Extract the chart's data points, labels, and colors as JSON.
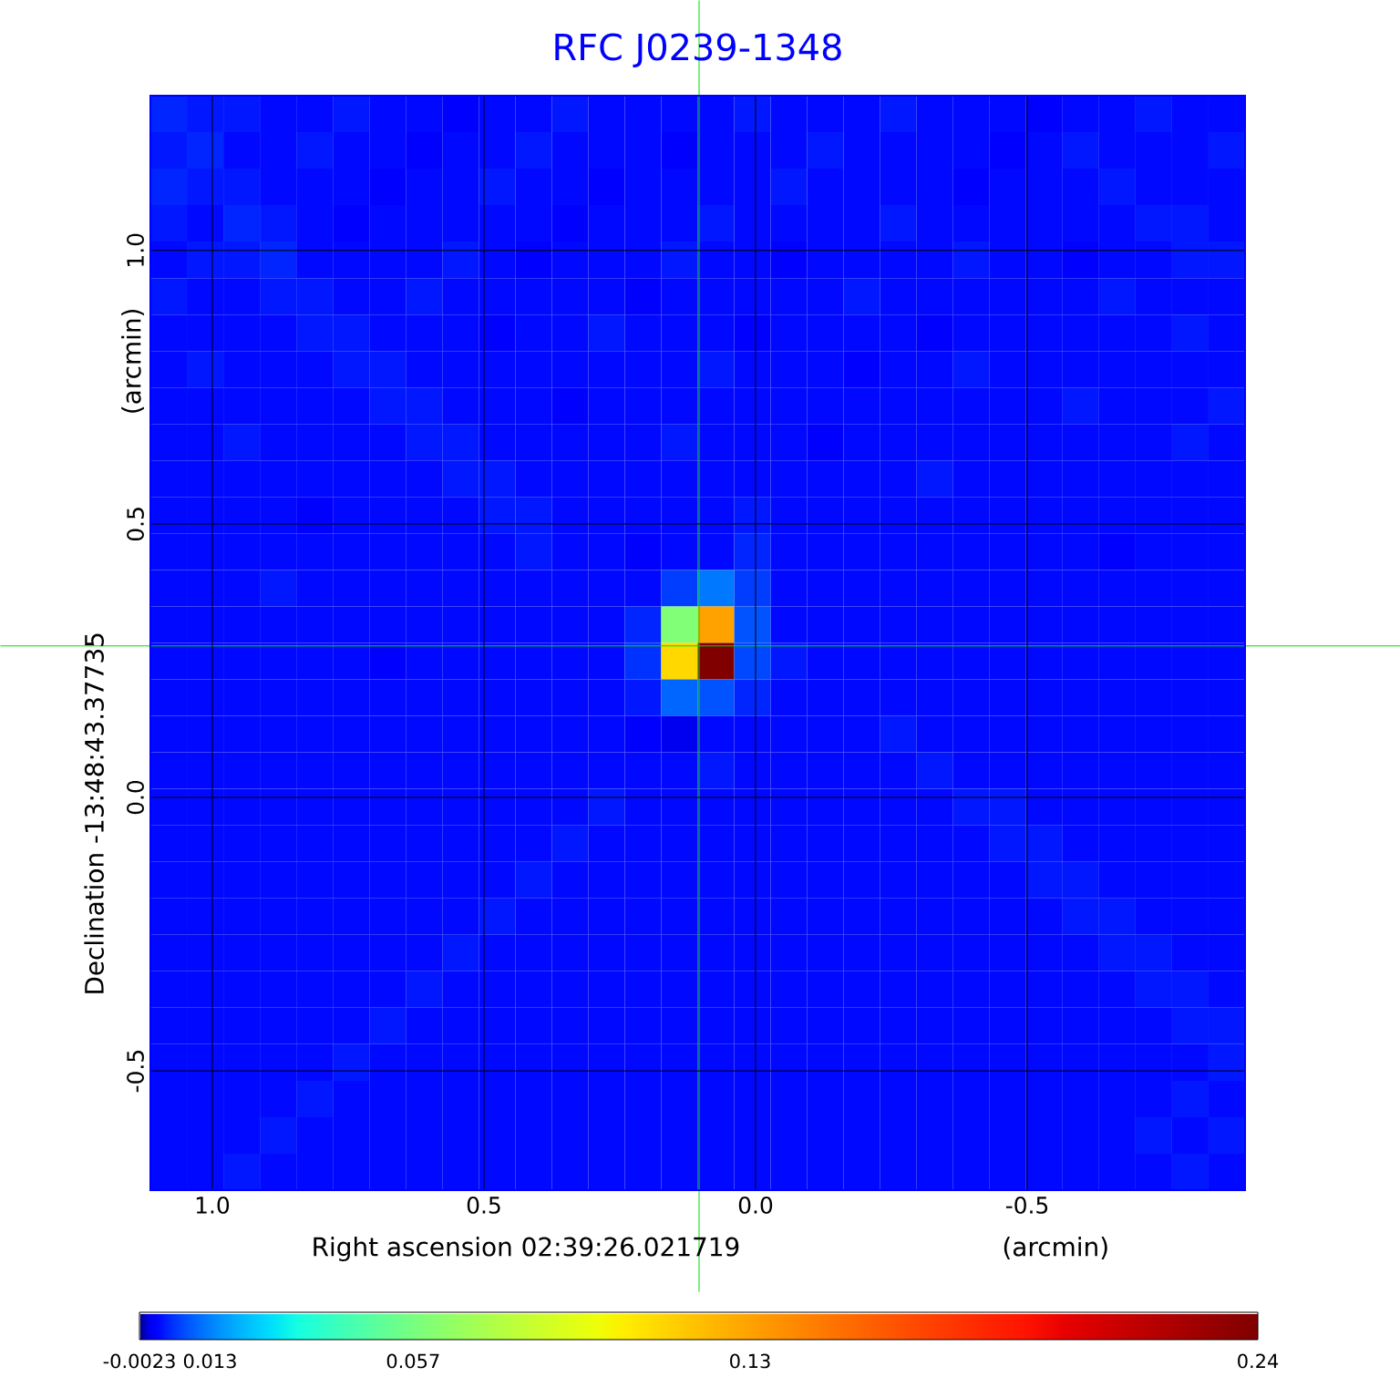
{
  "chart_data": {
    "type": "heatmap",
    "title": "RFC J0239-1348",
    "xlabel": "Right ascension  02:39:26.021719",
    "ylabel": "Declination  -13:48:43.37735",
    "annotations": [
      "(arcmin)",
      "(arcmin)"
    ],
    "xlim": [
      1.114,
      -0.901
    ],
    "ylim": [
      -0.718,
      1.283
    ],
    "xticks": [
      {
        "value": 1.0,
        "label": "1.0"
      },
      {
        "value": 0.5,
        "label": "0.5"
      },
      {
        "value": 0.0,
        "label": "0.0"
      },
      {
        "value": -0.5,
        "label": "-0.5"
      }
    ],
    "yticks": [
      {
        "value": -0.5,
        "label": "-0.5"
      },
      {
        "value": 0.0,
        "label": "0.0"
      },
      {
        "value": 0.5,
        "label": "0.5"
      },
      {
        "value": 1.0,
        "label": "1.0"
      }
    ],
    "grid": true,
    "ref_lines": [
      {
        "axis": "x",
        "value": 0.104,
        "color": "#00dd00"
      },
      {
        "axis": "y",
        "value": 0.277,
        "color": "#00dd00"
      }
    ],
    "clim": [
      -0.0023,
      0.24
    ],
    "cticks": [
      -0.0023,
      0.013,
      0.057,
      0.13,
      0.24
    ],
    "cells": [
      [
        0.004,
        0.003,
        0.003,
        0.002,
        0.002,
        0.003,
        0.002,
        0.002,
        0.001,
        0.002,
        0.002,
        0.003,
        0.002,
        0.002,
        0.002,
        0.002,
        0.003,
        0.002,
        0.002,
        0.002,
        0.003,
        0.002,
        0.002,
        0.002,
        0.001,
        0.002,
        0.002,
        0.003,
        0.002,
        0.002
      ],
      [
        0.003,
        0.004,
        0.002,
        0.002,
        0.003,
        0.002,
        0.002,
        0.001,
        0.002,
        0.002,
        0.003,
        0.002,
        0.002,
        0.002,
        0.001,
        0.002,
        0.002,
        0.002,
        0.003,
        0.002,
        0.002,
        0.002,
        0.002,
        0.001,
        0.002,
        0.003,
        0.002,
        0.002,
        0.002,
        0.003
      ],
      [
        0.004,
        0.003,
        0.003,
        0.002,
        0.002,
        0.002,
        0.001,
        0.002,
        0.002,
        0.003,
        0.002,
        0.002,
        0.001,
        0.002,
        0.002,
        0.002,
        0.002,
        0.003,
        0.002,
        0.002,
        0.002,
        0.002,
        0.001,
        0.002,
        0.002,
        0.002,
        0.003,
        0.002,
        0.002,
        0.002
      ],
      [
        0.003,
        0.002,
        0.004,
        0.003,
        0.002,
        0.001,
        0.002,
        0.002,
        0.002,
        0.002,
        0.002,
        0.001,
        0.002,
        0.002,
        0.002,
        0.003,
        0.002,
        0.002,
        0.002,
        0.002,
        0.003,
        0.002,
        0.002,
        0.002,
        0.002,
        0.002,
        0.002,
        0.003,
        0.003,
        0.002
      ],
      [
        0.002,
        0.003,
        0.003,
        0.004,
        0.002,
        0.002,
        0.002,
        0.002,
        0.003,
        0.002,
        0.001,
        0.002,
        0.002,
        0.002,
        0.003,
        0.002,
        0.002,
        0.001,
        0.002,
        0.002,
        0.002,
        0.002,
        0.003,
        0.002,
        0.002,
        0.001,
        0.002,
        0.002,
        0.003,
        0.003
      ],
      [
        0.003,
        0.002,
        0.002,
        0.003,
        0.003,
        0.002,
        0.002,
        0.003,
        0.002,
        0.002,
        0.002,
        0.002,
        0.002,
        0.001,
        0.002,
        0.002,
        0.002,
        0.002,
        0.002,
        0.003,
        0.002,
        0.002,
        0.002,
        0.002,
        0.002,
        0.002,
        0.003,
        0.002,
        0.002,
        0.002
      ],
      [
        0.002,
        0.002,
        0.002,
        0.002,
        0.003,
        0.003,
        0.002,
        0.002,
        0.002,
        0.001,
        0.002,
        0.002,
        0.003,
        0.002,
        0.002,
        0.002,
        0.001,
        0.002,
        0.002,
        0.002,
        0.002,
        0.001,
        0.002,
        0.002,
        0.002,
        0.002,
        0.002,
        0.002,
        0.003,
        0.002
      ],
      [
        0.002,
        0.003,
        0.002,
        0.002,
        0.002,
        0.003,
        0.003,
        0.002,
        0.002,
        0.002,
        0.002,
        0.002,
        0.002,
        0.002,
        0.002,
        0.003,
        0.002,
        0.002,
        0.002,
        0.001,
        0.002,
        0.002,
        0.003,
        0.002,
        0.002,
        0.002,
        0.002,
        0.002,
        0.002,
        0.002
      ],
      [
        0.002,
        0.002,
        0.002,
        0.002,
        0.002,
        0.002,
        0.003,
        0.003,
        0.002,
        0.002,
        0.002,
        0.001,
        0.002,
        0.002,
        0.002,
        0.002,
        0.002,
        0.002,
        0.002,
        0.002,
        0.002,
        0.002,
        0.002,
        0.002,
        0.002,
        0.003,
        0.002,
        0.002,
        0.002,
        0.003
      ],
      [
        0.002,
        0.002,
        0.003,
        0.002,
        0.002,
        0.002,
        0.002,
        0.003,
        0.003,
        0.002,
        0.002,
        0.002,
        0.002,
        0.002,
        0.003,
        0.002,
        0.002,
        0.002,
        0.001,
        0.002,
        0.002,
        0.002,
        0.002,
        0.002,
        0.002,
        0.002,
        0.002,
        0.002,
        0.003,
        0.002
      ],
      [
        0.002,
        0.002,
        0.002,
        0.002,
        0.002,
        0.002,
        0.002,
        0.002,
        0.003,
        0.003,
        0.002,
        0.002,
        0.002,
        0.002,
        0.002,
        0.002,
        0.002,
        0.002,
        0.002,
        0.002,
        0.002,
        0.003,
        0.002,
        0.002,
        0.002,
        0.002,
        0.002,
        0.002,
        0.002,
        0.002
      ],
      [
        0.002,
        0.002,
        0.002,
        0.002,
        0.001,
        0.002,
        0.002,
        0.002,
        0.002,
        0.003,
        0.003,
        0.002,
        0.002,
        0.002,
        0.002,
        0.002,
        0.003,
        0.002,
        0.002,
        0.002,
        0.002,
        0.002,
        0.002,
        0.002,
        0.002,
        0.002,
        0.002,
        0.002,
        0.002,
        0.002
      ],
      [
        0.002,
        0.002,
        0.002,
        0.002,
        0.002,
        0.002,
        0.002,
        0.002,
        0.002,
        0.002,
        0.003,
        0.002,
        0.002,
        0.001,
        0.002,
        0.002,
        0.004,
        0.002,
        0.002,
        0.002,
        0.002,
        0.002,
        0.002,
        0.002,
        0.002,
        0.002,
        0.001,
        0.002,
        0.002,
        0.002
      ],
      [
        0.002,
        0.002,
        0.002,
        0.003,
        0.002,
        0.002,
        0.002,
        0.002,
        0.002,
        0.002,
        0.002,
        0.002,
        0.002,
        0.002,
        0.006,
        0.012,
        0.006,
        0.002,
        0.002,
        0.002,
        0.002,
        0.002,
        0.002,
        0.002,
        0.002,
        0.002,
        0.002,
        0.002,
        0.002,
        0.002
      ],
      [
        0.002,
        0.002,
        0.002,
        0.002,
        0.002,
        0.002,
        0.002,
        0.002,
        0.002,
        0.002,
        0.002,
        0.002,
        0.002,
        0.004,
        0.06,
        0.13,
        0.008,
        0.002,
        0.002,
        0.002,
        0.002,
        0.002,
        0.002,
        0.002,
        0.002,
        0.002,
        0.002,
        0.002,
        0.002,
        0.002
      ],
      [
        0.002,
        0.002,
        0.002,
        0.002,
        0.002,
        0.002,
        0.001,
        0.002,
        0.002,
        0.002,
        0.002,
        0.002,
        0.002,
        0.005,
        0.11,
        0.24,
        0.007,
        0.003,
        0.002,
        0.002,
        0.002,
        0.002,
        0.002,
        0.002,
        0.002,
        0.002,
        0.002,
        0.002,
        0.002,
        0.002
      ],
      [
        0.002,
        0.002,
        0.002,
        0.002,
        0.002,
        0.002,
        0.002,
        0.002,
        0.002,
        0.002,
        0.002,
        0.002,
        0.002,
        0.003,
        0.01,
        0.008,
        0.004,
        0.002,
        0.002,
        0.002,
        0.002,
        0.002,
        0.002,
        0.002,
        0.002,
        0.002,
        0.002,
        0.002,
        0.002,
        0.002
      ],
      [
        0.002,
        0.002,
        0.002,
        0.002,
        0.002,
        0.002,
        0.002,
        0.002,
        0.002,
        0.002,
        0.002,
        0.002,
        0.002,
        0.001,
        0.0,
        0.002,
        0.002,
        0.002,
        0.002,
        0.002,
        0.003,
        0.002,
        0.002,
        0.002,
        0.002,
        0.002,
        0.002,
        0.002,
        0.002,
        0.002
      ],
      [
        0.002,
        0.002,
        0.002,
        0.002,
        0.002,
        0.002,
        0.002,
        0.002,
        0.002,
        0.002,
        0.002,
        0.002,
        0.002,
        0.002,
        0.002,
        0.003,
        0.002,
        0.002,
        0.002,
        0.002,
        0.002,
        0.003,
        0.002,
        0.002,
        0.002,
        0.002,
        0.002,
        0.002,
        0.002,
        0.002
      ],
      [
        0.002,
        0.002,
        0.002,
        0.002,
        0.002,
        0.002,
        0.002,
        0.002,
        0.002,
        0.002,
        0.002,
        0.002,
        0.003,
        0.002,
        0.002,
        0.002,
        0.002,
        0.002,
        0.002,
        0.002,
        0.002,
        0.002,
        0.003,
        0.003,
        0.002,
        0.002,
        0.002,
        0.002,
        0.002,
        0.002
      ],
      [
        0.002,
        0.002,
        0.002,
        0.002,
        0.002,
        0.002,
        0.002,
        0.002,
        0.002,
        0.002,
        0.002,
        0.003,
        0.002,
        0.002,
        0.002,
        0.002,
        0.002,
        0.002,
        0.002,
        0.002,
        0.002,
        0.002,
        0.002,
        0.003,
        0.003,
        0.002,
        0.002,
        0.002,
        0.002,
        0.002
      ],
      [
        0.002,
        0.002,
        0.002,
        0.002,
        0.002,
        0.002,
        0.002,
        0.002,
        0.002,
        0.002,
        0.003,
        0.002,
        0.002,
        0.002,
        0.002,
        0.002,
        0.002,
        0.002,
        0.002,
        0.002,
        0.002,
        0.002,
        0.002,
        0.002,
        0.003,
        0.003,
        0.002,
        0.002,
        0.002,
        0.002
      ],
      [
        0.002,
        0.002,
        0.002,
        0.002,
        0.002,
        0.002,
        0.002,
        0.002,
        0.002,
        0.003,
        0.002,
        0.002,
        0.002,
        0.002,
        0.002,
        0.002,
        0.002,
        0.002,
        0.002,
        0.002,
        0.002,
        0.002,
        0.002,
        0.002,
        0.002,
        0.003,
        0.003,
        0.002,
        0.002,
        0.002
      ],
      [
        0.002,
        0.002,
        0.002,
        0.002,
        0.002,
        0.002,
        0.002,
        0.002,
        0.003,
        0.002,
        0.002,
        0.002,
        0.002,
        0.002,
        0.002,
        0.002,
        0.002,
        0.002,
        0.002,
        0.002,
        0.002,
        0.002,
        0.002,
        0.002,
        0.002,
        0.002,
        0.003,
        0.003,
        0.002,
        0.002
      ],
      [
        0.002,
        0.002,
        0.002,
        0.002,
        0.002,
        0.002,
        0.002,
        0.003,
        0.002,
        0.002,
        0.002,
        0.002,
        0.002,
        0.002,
        0.002,
        0.002,
        0.002,
        0.002,
        0.002,
        0.002,
        0.002,
        0.002,
        0.002,
        0.002,
        0.002,
        0.002,
        0.002,
        0.003,
        0.003,
        0.002
      ],
      [
        0.002,
        0.002,
        0.002,
        0.002,
        0.002,
        0.002,
        0.003,
        0.002,
        0.002,
        0.002,
        0.002,
        0.002,
        0.002,
        0.002,
        0.002,
        0.002,
        0.002,
        0.002,
        0.002,
        0.002,
        0.002,
        0.002,
        0.002,
        0.002,
        0.002,
        0.002,
        0.002,
        0.002,
        0.003,
        0.003
      ],
      [
        0.002,
        0.002,
        0.002,
        0.002,
        0.002,
        0.003,
        0.002,
        0.002,
        0.002,
        0.002,
        0.002,
        0.002,
        0.002,
        0.002,
        0.002,
        0.002,
        0.002,
        0.002,
        0.002,
        0.002,
        0.002,
        0.002,
        0.002,
        0.002,
        0.002,
        0.002,
        0.002,
        0.002,
        0.002,
        0.003
      ],
      [
        0.002,
        0.002,
        0.002,
        0.002,
        0.003,
        0.002,
        0.002,
        0.002,
        0.002,
        0.002,
        0.002,
        0.002,
        0.002,
        0.002,
        0.002,
        0.002,
        0.002,
        0.002,
        0.002,
        0.002,
        0.002,
        0.002,
        0.002,
        0.002,
        0.002,
        0.002,
        0.002,
        0.002,
        0.003,
        0.002
      ],
      [
        0.002,
        0.002,
        0.002,
        0.003,
        0.002,
        0.002,
        0.002,
        0.002,
        0.002,
        0.002,
        0.002,
        0.002,
        0.002,
        0.002,
        0.002,
        0.002,
        0.002,
        0.002,
        0.002,
        0.002,
        0.002,
        0.002,
        0.002,
        0.002,
        0.002,
        0.002,
        0.002,
        0.003,
        0.002,
        0.003
      ],
      [
        0.002,
        0.002,
        0.003,
        0.002,
        0.002,
        0.002,
        0.002,
        0.002,
        0.002,
        0.002,
        0.002,
        0.002,
        0.002,
        0.002,
        0.002,
        0.002,
        0.002,
        0.002,
        0.002,
        0.002,
        0.002,
        0.002,
        0.002,
        0.002,
        0.002,
        0.002,
        0.002,
        0.002,
        0.003,
        0.002
      ]
    ]
  }
}
